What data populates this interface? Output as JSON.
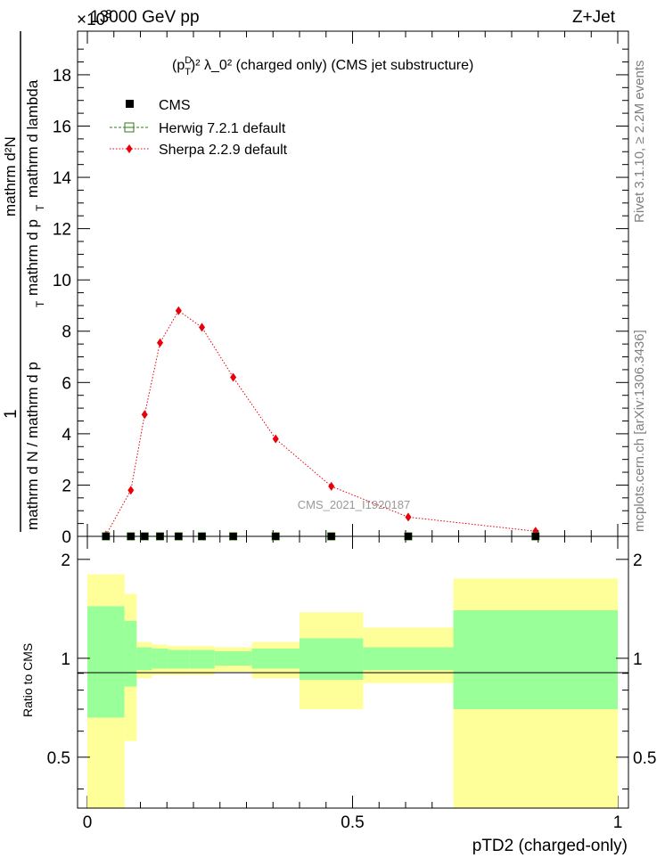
{
  "header": {
    "energy": "13000 GeV pp",
    "process": "Z+Jet",
    "exponent_prefix": "×10",
    "exponent_value": "3"
  },
  "side_labels": {
    "rivet": "Rivet 3.1.10, ≥ 2.2M events",
    "mcplots": "mcplots.cern.ch [arXiv:1306.3436]"
  },
  "plot_title": {
    "prefix": "(p",
    "sup_d": "D",
    "sub_t": "T",
    "suffix": ")² λ_0² (charged only) (CMS jet substructure)"
  },
  "ylabel": {
    "numerator": "1",
    "denominator_a": "mathrm d N / mathrm d p",
    "denominator_b": "mathrm d p",
    "denominator_c": "mathrm d lambda",
    "top_a": "mathrm d²N",
    "sub_t": "T"
  },
  "watermark": "CMS_2021_I1920187",
  "legend": [
    {
      "name": "CMS",
      "color": "#000000",
      "marker": "square"
    },
    {
      "name": "Herwig 7.2.1 default",
      "color": "#2e7d1a",
      "marker": "open-square"
    },
    {
      "name": "Sherpa 2.2.9 default",
      "color": "#e8000a",
      "marker": "diamond"
    }
  ],
  "ratio_panel": {
    "ylabel": "Ratio to CMS",
    "yticks": [
      "0.5",
      "1",
      "2"
    ]
  },
  "xaxis": {
    "label": "pTD2 (charged-only)",
    "ticks": [
      "0",
      "0.5",
      "1"
    ]
  },
  "main_yticks": [
    "0",
    "2",
    "4",
    "6",
    "8",
    "10",
    "12",
    "14",
    "16",
    "18"
  ],
  "colors": {
    "band_outer": "#ffff99",
    "band_inner": "#99ff99",
    "sherpa": "#e8000a",
    "herwig": "#2e7d1a",
    "data": "#000000"
  },
  "chart_data": {
    "type": "line",
    "xlabel": "pTD2 (charged-only)",
    "xlim": [
      0,
      1
    ],
    "ylim": [
      0,
      19.7
    ],
    "y_scale_factor": "×10³",
    "series": [
      {
        "name": "CMS",
        "x": [
          0.035,
          0.082,
          0.108,
          0.137,
          0.172,
          0.216,
          0.275,
          0.355,
          0.46,
          0.605,
          0.845
        ],
        "y": [
          0.0,
          0.0,
          0.0,
          0.0,
          0.0,
          0.0,
          0.0,
          0.0,
          0.0,
          0.0,
          0.0
        ]
      },
      {
        "name": "Herwig 7.2.1 default",
        "x": [
          0.035,
          0.082,
          0.108,
          0.137,
          0.172,
          0.216,
          0.275,
          0.355,
          0.46,
          0.605,
          0.845
        ],
        "y": [
          0.0,
          0.0,
          0.0,
          0.0,
          0.0,
          0.0,
          0.0,
          0.0,
          0.0,
          0.0,
          0.0
        ]
      },
      {
        "name": "Sherpa 2.2.9 default",
        "x": [
          0.035,
          0.082,
          0.108,
          0.137,
          0.172,
          0.216,
          0.275,
          0.355,
          0.46,
          0.605,
          0.845
        ],
        "y": [
          0.05,
          1.8,
          4.75,
          7.55,
          8.8,
          8.15,
          6.2,
          3.8,
          1.95,
          0.75,
          0.2
        ]
      }
    ],
    "ratio": {
      "ylabel": "Ratio to CMS",
      "ylim": [
        0.35,
        2.35
      ],
      "log": true,
      "bins": [
        {
          "x0": 0.0,
          "x1": 0.07,
          "outer": [
            0.35,
            1.8
          ],
          "inner": [
            0.66,
            1.44
          ]
        },
        {
          "x0": 0.07,
          "x1": 0.093,
          "outer": [
            0.56,
            1.57
          ],
          "inner": [
            0.82,
            1.3
          ]
        },
        {
          "x0": 0.093,
          "x1": 0.122,
          "outer": [
            0.87,
            1.12
          ],
          "inner": [
            0.92,
            1.08
          ]
        },
        {
          "x0": 0.122,
          "x1": 0.152,
          "outer": [
            0.89,
            1.1
          ],
          "inner": [
            0.93,
            1.07
          ]
        },
        {
          "x0": 0.152,
          "x1": 0.192,
          "outer": [
            0.89,
            1.09
          ],
          "inner": [
            0.93,
            1.06
          ]
        },
        {
          "x0": 0.192,
          "x1": 0.24,
          "outer": [
            0.89,
            1.09
          ],
          "inner": [
            0.93,
            1.06
          ]
        },
        {
          "x0": 0.24,
          "x1": 0.31,
          "outer": [
            0.91,
            1.08
          ],
          "inner": [
            0.95,
            1.05
          ]
        },
        {
          "x0": 0.31,
          "x1": 0.4,
          "outer": [
            0.87,
            1.12
          ],
          "inner": [
            0.93,
            1.07
          ]
        },
        {
          "x0": 0.4,
          "x1": 0.52,
          "outer": [
            0.7,
            1.38
          ],
          "inner": [
            0.86,
            1.15
          ]
        },
        {
          "x0": 0.52,
          "x1": 0.69,
          "outer": [
            0.84,
            1.24
          ],
          "inner": [
            0.92,
            1.08
          ]
        },
        {
          "x0": 0.69,
          "x1": 1.0,
          "outer": [
            0.35,
            1.75
          ],
          "inner": [
            0.7,
            1.4
          ]
        }
      ]
    }
  }
}
